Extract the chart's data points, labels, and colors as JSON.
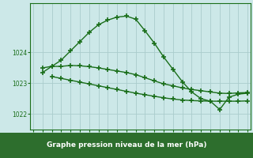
{
  "background_color": "#cce8e8",
  "grid_color": "#aacccc",
  "line_color": "#1a6e1a",
  "marker": "+",
  "markersize": 4,
  "linewidth": 1.0,
  "markeredgewidth": 1.2,
  "xlabel": "Graphe pression niveau de la mer (hPa)",
  "xlabel_fontsize": 6.5,
  "tick_fontsize": 5.5,
  "ytick_labels": [
    1022,
    1023,
    1024
  ],
  "ylim": [
    1021.5,
    1025.6
  ],
  "xlim": [
    -0.3,
    23.3
  ],
  "xticks": [
    0,
    1,
    2,
    3,
    4,
    5,
    6,
    7,
    8,
    9,
    10,
    11,
    12,
    13,
    14,
    15,
    16,
    17,
    18,
    19,
    20,
    21,
    22,
    23
  ],
  "line1_x": [
    1,
    2,
    3,
    4,
    5,
    6,
    7,
    8,
    9,
    10,
    11,
    12,
    13,
    14,
    15,
    16,
    17,
    18,
    19,
    20,
    21,
    22,
    23
  ],
  "line1_y": [
    1023.35,
    1023.55,
    1023.75,
    1024.05,
    1024.35,
    1024.65,
    1024.9,
    1025.05,
    1025.15,
    1025.18,
    1025.08,
    1024.7,
    1024.3,
    1023.85,
    1023.45,
    1023.05,
    1022.72,
    1022.5,
    1022.42,
    1022.15,
    1022.55,
    1022.65,
    1022.68
  ],
  "line2_x": [
    1,
    2,
    3,
    4,
    5,
    6,
    7,
    8,
    9,
    10,
    11,
    12,
    13,
    14,
    15,
    16,
    17,
    18,
    19,
    20,
    21,
    22,
    23
  ],
  "line2_y": [
    1023.5,
    1023.55,
    1023.55,
    1023.58,
    1023.57,
    1023.54,
    1023.5,
    1023.45,
    1023.4,
    1023.35,
    1023.28,
    1023.18,
    1023.08,
    1022.98,
    1022.92,
    1022.85,
    1022.8,
    1022.76,
    1022.72,
    1022.68,
    1022.67,
    1022.69,
    1022.7
  ],
  "line3_x": [
    2,
    3,
    4,
    5,
    6,
    7,
    8,
    9,
    10,
    11,
    12,
    13,
    14,
    15,
    16,
    17,
    18,
    19,
    20,
    21,
    22,
    23
  ],
  "line3_y": [
    1023.22,
    1023.16,
    1023.1,
    1023.04,
    1022.98,
    1022.92,
    1022.86,
    1022.8,
    1022.74,
    1022.68,
    1022.63,
    1022.58,
    1022.53,
    1022.49,
    1022.46,
    1022.44,
    1022.43,
    1022.42,
    1022.42,
    1022.42,
    1022.42,
    1022.43
  ],
  "xlabel_bg_color": "#2d6e2d",
  "xlabel_text_color": "#ffffff"
}
